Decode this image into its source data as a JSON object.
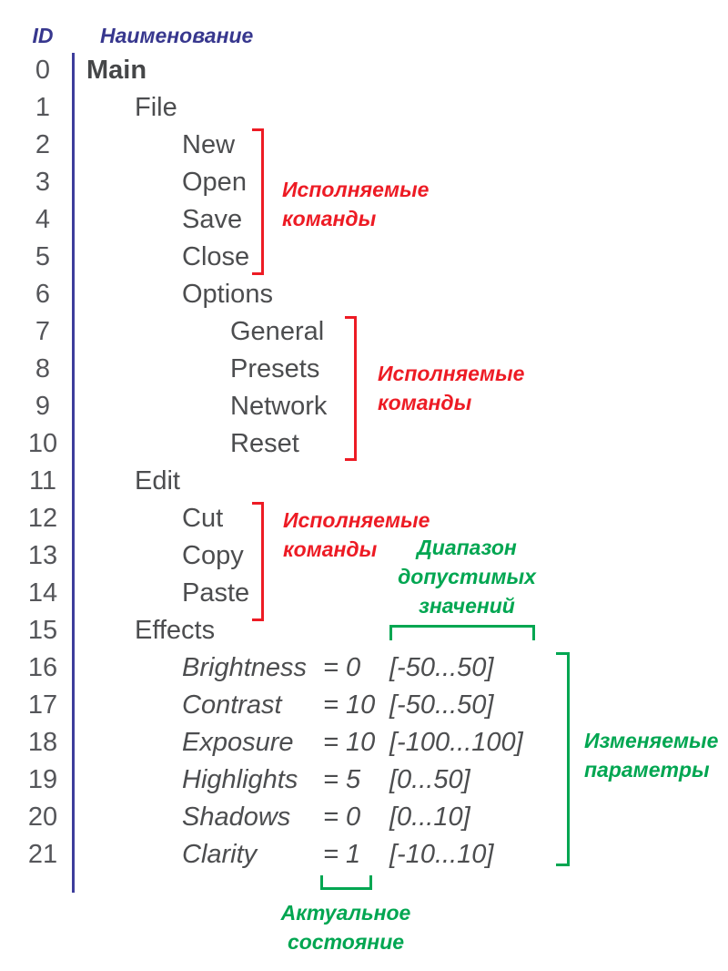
{
  "colors": {
    "indigo": "#37378e",
    "line": "#3d3d9c",
    "red": "#ed1b24",
    "green": "#00a651",
    "gray-num": "#55565a",
    "gray-name": "#4c4d4f"
  },
  "header": {
    "id_label": "ID",
    "name_label": "Наименование"
  },
  "tree": {
    "rows": [
      {
        "id": "0",
        "label": "Main",
        "level": 0,
        "bold": true
      },
      {
        "id": "1",
        "label": "File",
        "level": 1
      },
      {
        "id": "2",
        "label": "New",
        "level": 2
      },
      {
        "id": "3",
        "label": "Open",
        "level": 2
      },
      {
        "id": "4",
        "label": "Save",
        "level": 2
      },
      {
        "id": "5",
        "label": "Close",
        "level": 2
      },
      {
        "id": "6",
        "label": "Options",
        "level": 2
      },
      {
        "id": "7",
        "label": "General",
        "level": 3
      },
      {
        "id": "8",
        "label": "Presets",
        "level": 3
      },
      {
        "id": "9",
        "label": "Network",
        "level": 3
      },
      {
        "id": "10",
        "label": "Reset",
        "level": 3
      },
      {
        "id": "11",
        "label": "Edit",
        "level": 1
      },
      {
        "id": "12",
        "label": "Cut",
        "level": 2
      },
      {
        "id": "13",
        "label": "Copy",
        "level": 2
      },
      {
        "id": "14",
        "label": "Paste",
        "level": 2
      },
      {
        "id": "15",
        "label": "Effects",
        "level": 1
      },
      {
        "id": "16",
        "label": "Brightness",
        "level": 2,
        "value": "= 0",
        "range": "[-50...50]"
      },
      {
        "id": "17",
        "label": "Contrast",
        "level": 2,
        "value": "= 10",
        "range": "[-50...50]"
      },
      {
        "id": "18",
        "label": "Exposure",
        "level": 2,
        "value": "= 10",
        "range": "[-100...100]"
      },
      {
        "id": "19",
        "label": "Highlights",
        "level": 2,
        "value": "= 5",
        "range": "[0...50]"
      },
      {
        "id": "20",
        "label": "Shadows",
        "level": 2,
        "value": "= 0",
        "range": "[0...10]"
      },
      {
        "id": "21",
        "label": "Clarity",
        "level": 2,
        "value": "= 1",
        "range": "[-10...10]"
      }
    ]
  },
  "annotations": {
    "exec_file": {
      "lines": [
        "Исполняемые",
        "команды"
      ]
    },
    "exec_options": {
      "lines": [
        "Исполняемые",
        "команды"
      ]
    },
    "exec_edit": {
      "lines": [
        "Исполняемые",
        "команды"
      ]
    },
    "range": {
      "lines": [
        "Диапазон",
        "допустимых",
        "значений"
      ]
    },
    "params": {
      "lines": [
        "Изменяемые",
        "параметры"
      ]
    },
    "state": {
      "lines": [
        "Актуальное",
        "состояние"
      ]
    }
  }
}
